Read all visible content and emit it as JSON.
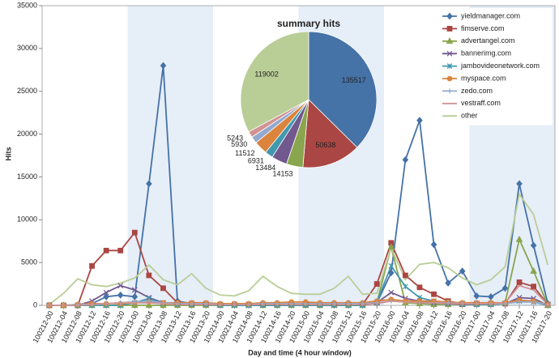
{
  "chart_data": [
    {
      "type": "line",
      "x_label": "Day and time (4 hour window)",
      "y_label": "Hits",
      "categories": [
        "100212-00",
        "100212-04",
        "100212-08",
        "100212-12",
        "100212-16",
        "100212-20",
        "100213-00",
        "100213-04",
        "100213-08",
        "100213-12",
        "100213-16",
        "100213-20",
        "100214-00",
        "100214-04",
        "100214-08",
        "100214-12",
        "100214-16",
        "100214-20",
        "100215-00",
        "100215-04",
        "100215-08",
        "100215-12",
        "100215-16",
        "100215-20",
        "100216-00",
        "100216-04",
        "100216-08",
        "100216-12",
        "100216-16",
        "100216-20",
        "100217-00",
        "100217-04",
        "100217-08",
        "100217-12",
        "100217-16",
        "100217-20"
      ],
      "ylim": [
        0,
        35000
      ],
      "yticks": [
        0,
        5000,
        10000,
        15000,
        20000,
        25000,
        30000,
        35000
      ],
      "grid": false,
      "legend": "upper right",
      "series": [
        {
          "name": "yieldmanager.com",
          "color": "#4572a7",
          "marker": "diamond",
          "values": [
            0,
            0,
            0,
            200,
            1000,
            1200,
            1000,
            14200,
            28000,
            500,
            200,
            200,
            100,
            100,
            100,
            100,
            100,
            100,
            100,
            100,
            100,
            100,
            100,
            300,
            3800,
            17000,
            21600,
            7100,
            2600,
            4000,
            1100,
            1000,
            2000,
            14200,
            7000,
            200
          ]
        },
        {
          "name": "fimserve.com",
          "color": "#aa4643",
          "marker": "square",
          "values": [
            0,
            0,
            0,
            4600,
            6400,
            6400,
            8500,
            3500,
            2000,
            300,
            200,
            200,
            100,
            100,
            100,
            100,
            100,
            100,
            100,
            100,
            100,
            100,
            100,
            2500,
            7300,
            3500,
            2100,
            1300,
            500,
            200,
            200,
            200,
            200,
            2700,
            2200,
            100
          ]
        },
        {
          "name": "advertangel.com",
          "color": "#89a54e",
          "marker": "triangle",
          "values": [
            0,
            0,
            0,
            0,
            0,
            0,
            0,
            0,
            0,
            0,
            0,
            0,
            0,
            0,
            0,
            0,
            0,
            0,
            0,
            0,
            0,
            0,
            0,
            300,
            6800,
            300,
            200,
            100,
            100,
            100,
            100,
            100,
            300,
            7700,
            4000,
            0
          ]
        },
        {
          "name": "bannerimg.com",
          "color": "#71588f",
          "marker": "x",
          "values": [
            0,
            0,
            0,
            500,
            1500,
            2300,
            1800,
            900,
            300,
            100,
            100,
            100,
            0,
            0,
            0,
            0,
            0,
            0,
            0,
            0,
            0,
            0,
            0,
            300,
            1500,
            800,
            500,
            300,
            200,
            100,
            100,
            100,
            200,
            900,
            800,
            0
          ]
        },
        {
          "name": "jambovideonetwork.com",
          "color": "#4198af",
          "marker": "star",
          "values": [
            0,
            0,
            0,
            0,
            0,
            0,
            300,
            800,
            200,
            100,
            100,
            100,
            0,
            0,
            0,
            0,
            0,
            0,
            0,
            0,
            0,
            0,
            0,
            400,
            4600,
            2200,
            900,
            500,
            300,
            200,
            100,
            100,
            200,
            500,
            400,
            0
          ]
        },
        {
          "name": "myspace.com",
          "color": "#db843d",
          "marker": "circle",
          "values": [
            0,
            0,
            100,
            200,
            200,
            200,
            300,
            400,
            300,
            300,
            300,
            300,
            200,
            200,
            200,
            300,
            300,
            400,
            400,
            300,
            300,
            300,
            300,
            500,
            700,
            500,
            500,
            500,
            400,
            300,
            300,
            300,
            300,
            600,
            500,
            100
          ]
        },
        {
          "name": "zedo.com",
          "color": "#93a9cf",
          "marker": "plus",
          "values": [
            0,
            0,
            100,
            100,
            200,
            300,
            400,
            500,
            300,
            200,
            200,
            200,
            100,
            100,
            100,
            200,
            200,
            200,
            200,
            200,
            200,
            200,
            200,
            300,
            500,
            400,
            300,
            300,
            300,
            200,
            200,
            200,
            200,
            400,
            400,
            100
          ]
        },
        {
          "name": "vestraff.com",
          "color": "#d19392",
          "marker": "dash",
          "values": [
            0,
            0,
            0,
            100,
            200,
            300,
            300,
            300,
            200,
            100,
            100,
            100,
            100,
            100,
            100,
            100,
            100,
            100,
            100,
            100,
            100,
            100,
            100,
            200,
            500,
            400,
            300,
            300,
            200,
            200,
            200,
            200,
            300,
            2300,
            1800,
            100
          ]
        },
        {
          "name": "other",
          "color": "#b9cd96",
          "marker": "none",
          "values": [
            100,
            1400,
            3100,
            2400,
            2200,
            2600,
            3200,
            4700,
            3000,
            2400,
            3700,
            2000,
            1200,
            1100,
            1700,
            3400,
            2200,
            1400,
            1300,
            1300,
            2000,
            3400,
            1300,
            1400,
            6700,
            3000,
            4800,
            5000,
            4400,
            3200,
            2400,
            3000,
            4500,
            13000,
            10600,
            4700
          ]
        }
      ]
    },
    {
      "type": "pie",
      "title": "summary hits",
      "values": [
        135517,
        50638,
        14153,
        13484,
        6931,
        11512,
        5930,
        5243,
        119002
      ],
      "colors": [
        "#4572a7",
        "#aa4643",
        "#89a54e",
        "#71588f",
        "#4198af",
        "#db843d",
        "#93a9cf",
        "#d19392",
        "#b9cd96"
      ]
    }
  ]
}
